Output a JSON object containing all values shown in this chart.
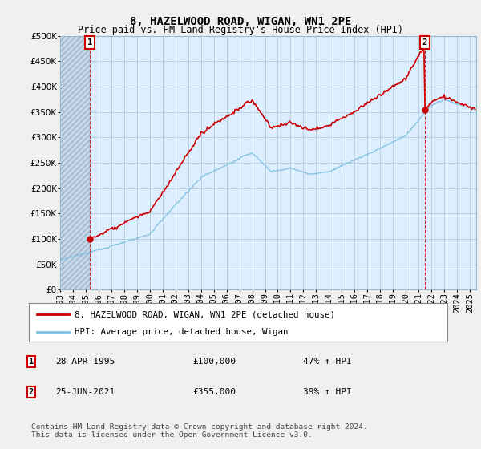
{
  "title": "8, HAZELWOOD ROAD, WIGAN, WN1 2PE",
  "subtitle": "Price paid vs. HM Land Registry's House Price Index (HPI)",
  "ytick_values": [
    0,
    50000,
    100000,
    150000,
    200000,
    250000,
    300000,
    350000,
    400000,
    450000,
    500000
  ],
  "ylim": [
    0,
    500000
  ],
  "sale1_date": 1995.33,
  "sale1_price": 100000,
  "sale2_date": 2021.49,
  "sale2_price": 355000,
  "hpi_color": "#7fbfdf",
  "sale_color": "#cc0000",
  "annotation_box_color": "#cc0000",
  "background_color": "#f0f0f0",
  "plot_bg_color": "#ddeeff",
  "hatch_bg_color": "#c8d8e8",
  "grid_color": "#aac4d8",
  "legend_label_sale": "8, HAZELWOOD ROAD, WIGAN, WN1 2PE (detached house)",
  "legend_label_hpi": "HPI: Average price, detached house, Wigan",
  "note1_num": "1",
  "note1_date": "28-APR-1995",
  "note1_price": "£100,000",
  "note1_hpi": "47% ↑ HPI",
  "note2_num": "2",
  "note2_date": "25-JUN-2021",
  "note2_price": "£355,000",
  "note2_hpi": "39% ↑ HPI",
  "footer": "Contains HM Land Registry data © Crown copyright and database right 2024.\nThis data is licensed under the Open Government Licence v3.0.",
  "title_fontsize": 10,
  "subtitle_fontsize": 8.5,
  "tick_fontsize": 7.5
}
